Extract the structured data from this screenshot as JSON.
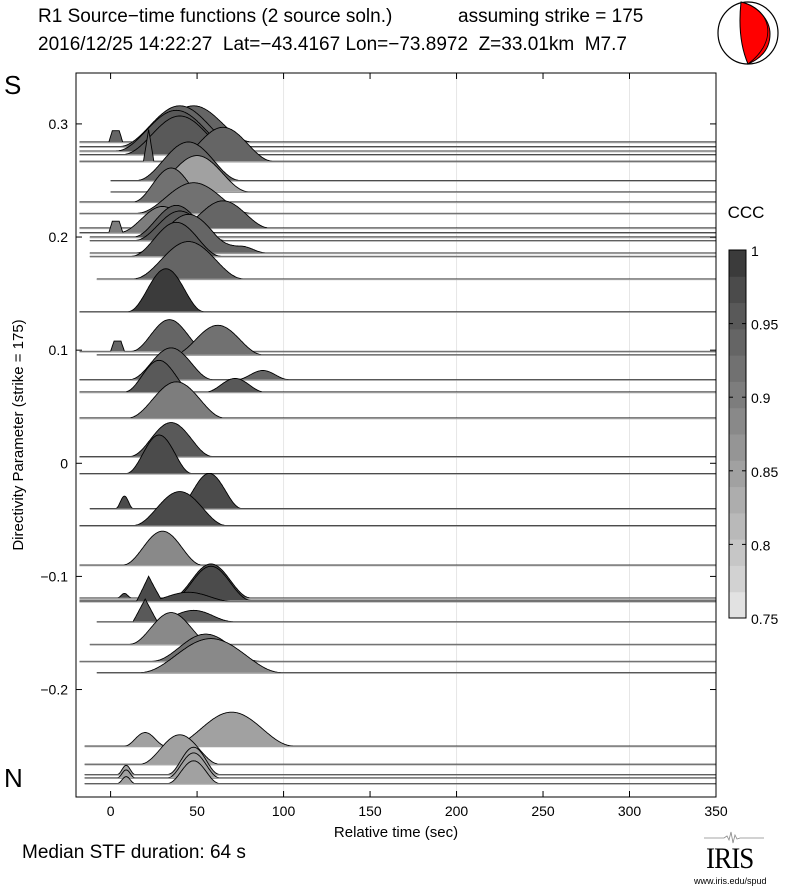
{
  "header": {
    "title_line1": "R1 Source−time functions (2 source soln.)",
    "strike_note": "assuming strike = 175",
    "title_line2": "2016/12/25 14:22:27  Lat=−43.4167 Lon=−73.8972  Z=33.01km  M7.7",
    "beachball_icon": "focal-mechanism-beachball",
    "beachball_color": "#ff0000"
  },
  "footer": {
    "median_label": "Median STF duration: 64 s",
    "logo_text": "IRIS",
    "logo_url": "www.iris.edu/spud"
  },
  "chart_data": {
    "type": "area",
    "title": "R1 Source−time functions (2 source soln.)",
    "xlabel": "Relative time (sec)",
    "ylabel": "Directivity Parameter (strike = 175)",
    "xlim": [
      -20,
      350
    ],
    "ylim": [
      -0.295,
      0.345
    ],
    "xticks": [
      0,
      50,
      100,
      150,
      200,
      250,
      300,
      350
    ],
    "xtick_labels": [
      "0",
      "50",
      "100",
      "150",
      "200",
      "250",
      "300",
      "350"
    ],
    "yticks": [
      0.3,
      0.2,
      0.1,
      0,
      -0.1,
      -0.2
    ],
    "ytick_labels": [
      "0.3",
      "0.2",
      "0.1",
      "0",
      "−0.1",
      "−0.2"
    ],
    "vertical_gridlines": [
      100,
      200,
      300
    ],
    "side_labels": {
      "top": "S",
      "bottom": "N"
    },
    "colorbar": {
      "title": "CCC",
      "range": [
        0.75,
        1.0
      ],
      "ticks": [
        1,
        0.95,
        0.9,
        0.85,
        0.8,
        0.75
      ],
      "tick_labels": [
        "1",
        "0.95",
        "0.9",
        "0.85",
        "0.8",
        "0.75"
      ],
      "levels": 14,
      "colors_low_to_high": [
        "#e2e2e2",
        "#d2d2d2",
        "#c6c6c6",
        "#b9b9b9",
        "#adadad",
        "#a1a1a1",
        "#959595",
        "#898989",
        "#7d7d7d",
        "#717171",
        "#656565",
        "#595959",
        "#4b4b4b",
        "#3b3b3b"
      ]
    },
    "amplitude_scale_note": "STF peak height in directivity-parameter units",
    "traces": [
      {
        "d": 0.284,
        "start": -18,
        "ccc": 0.93,
        "pulses": [
          [
            3,
            8,
            0.01,
            "trap"
          ],
          [
            48,
            68,
            0.032
          ]
        ],
        "end": 120
      },
      {
        "d": 0.28,
        "start": -18,
        "ccc": 0.94,
        "pulses": [
          [
            40,
            70,
            0.036
          ]
        ],
        "end": 120
      },
      {
        "d": 0.276,
        "start": -18,
        "ccc": 0.95,
        "pulses": [
          [
            38,
            70,
            0.036
          ]
        ],
        "end": 120
      },
      {
        "d": 0.273,
        "start": -18,
        "ccc": 0.95,
        "pulses": [
          [
            40,
            66,
            0.034
          ]
        ],
        "end": 120
      },
      {
        "d": 0.267,
        "start": -18,
        "ccc": 0.94,
        "pulses": [
          [
            22,
            6,
            0.028,
            "tri"
          ],
          [
            65,
            58,
            0.03
          ]
        ],
        "end": 128
      },
      {
        "d": 0.25,
        "start": 0,
        "ccc": 0.93,
        "pulses": [
          [
            45,
            60,
            0.034
          ]
        ],
        "end": 120
      },
      {
        "d": 0.24,
        "start": 0,
        "ccc": 0.85,
        "pulses": [
          [
            50,
            60,
            0.032
          ]
        ],
        "end": 120
      },
      {
        "d": 0.231,
        "start": -18,
        "ccc": 0.92,
        "pulses": [
          [
            35,
            44,
            0.03
          ]
        ],
        "end": 90
      },
      {
        "d": 0.221,
        "start": -18,
        "ccc": 0.92,
        "pulses": [
          [
            48,
            66,
            0.027
          ]
        ],
        "end": 125
      },
      {
        "d": 0.208,
        "start": -18,
        "ccc": 0.93,
        "pulses": [
          [
            65,
            54,
            0.024
          ]
        ],
        "end": 120
      },
      {
        "d": 0.204,
        "start": -18,
        "ccc": 0.91,
        "pulses": [
          [
            3,
            8,
            0.01,
            "trap"
          ],
          [
            30,
            50,
            0.023
          ]
        ],
        "end": 120
      },
      {
        "d": 0.2,
        "start": -12,
        "ccc": 0.96,
        "pulses": [
          [
            38,
            50,
            0.028
          ]
        ],
        "end": 110
      },
      {
        "d": 0.197,
        "start": -12,
        "ccc": 0.95,
        "pulses": [
          [
            40,
            52,
            0.026
          ]
        ],
        "end": 110
      },
      {
        "d": 0.186,
        "start": -12,
        "ccc": 0.93,
        "pulses": [
          [
            45,
            60,
            0.034
          ],
          [
            75,
            30,
            0.006
          ]
        ],
        "end": 115
      },
      {
        "d": 0.183,
        "start": -12,
        "ccc": 0.95,
        "pulses": [
          [
            38,
            52,
            0.03
          ]
        ],
        "end": 115
      },
      {
        "d": 0.163,
        "start": -8,
        "ccc": 0.93,
        "pulses": [
          [
            45,
            64,
            0.033
          ]
        ],
        "end": 120
      },
      {
        "d": 0.134,
        "start": -18,
        "ccc": 0.99,
        "pulses": [
          [
            32,
            44,
            0.038
          ]
        ],
        "end": 110
      },
      {
        "d": 0.099,
        "start": -18,
        "ccc": 0.93,
        "pulses": [
          [
            4,
            8,
            0.009,
            "trap"
          ],
          [
            34,
            44,
            0.028
          ]
        ],
        "end": 110
      },
      {
        "d": 0.096,
        "start": -8,
        "ccc": 0.92,
        "pulses": [
          [
            62,
            52,
            0.026
          ]
        ],
        "end": 108
      },
      {
        "d": 0.074,
        "start": -18,
        "ccc": 0.93,
        "pulses": [
          [
            35,
            48,
            0.028
          ],
          [
            88,
            30,
            0.008
          ]
        ],
        "end": 125
      },
      {
        "d": 0.063,
        "start": -18,
        "ccc": 0.95,
        "pulses": [
          [
            28,
            40,
            0.028
          ],
          [
            72,
            34,
            0.012
          ]
        ],
        "end": 110
      },
      {
        "d": 0.04,
        "start": -18,
        "ccc": 0.91,
        "pulses": [
          [
            38,
            56,
            0.032
          ]
        ],
        "end": 115
      },
      {
        "d": 0.006,
        "start": -18,
        "ccc": 0.95,
        "pulses": [
          [
            35,
            48,
            0.03
          ]
        ],
        "end": 100
      },
      {
        "d": -0.009,
        "start": -18,
        "ccc": 0.98,
        "pulses": [
          [
            28,
            38,
            0.034
          ]
        ],
        "end": 100
      },
      {
        "d": -0.04,
        "start": -12,
        "ccc": 0.98,
        "pulses": [
          [
            8,
            10,
            0.011
          ],
          [
            57,
            38,
            0.031
          ]
        ],
        "end": 110
      },
      {
        "d": -0.055,
        "start": -18,
        "ccc": 0.97,
        "pulses": [
          [
            40,
            54,
            0.03
          ]
        ],
        "end": 110
      },
      {
        "d": -0.09,
        "start": -18,
        "ccc": 0.89,
        "pulses": [
          [
            30,
            46,
            0.03
          ]
        ],
        "end": 100
      },
      {
        "d": -0.119,
        "start": -18,
        "ccc": 0.98,
        "pulses": [
          [
            8,
            8,
            0.004
          ],
          [
            58,
            46,
            0.03
          ]
        ],
        "end": 110
      },
      {
        "d": -0.121,
        "start": -18,
        "ccc": 0.98,
        "pulses": [
          [
            58,
            46,
            0.03
          ]
        ],
        "end": 110
      },
      {
        "d": -0.122,
        "start": -18,
        "ccc": 0.97,
        "pulses": [
          [
            22,
            14,
            0.022,
            "tri"
          ],
          [
            45,
            50,
            0.008
          ]
        ],
        "end": 100
      },
      {
        "d": -0.14,
        "start": -8,
        "ccc": 0.96,
        "pulses": [
          [
            20,
            14,
            0.02,
            "tri"
          ],
          [
            48,
            46,
            0.01
          ]
        ],
        "end": 100
      },
      {
        "d": -0.16,
        "start": -12,
        "ccc": 0.89,
        "pulses": [
          [
            35,
            48,
            0.028
          ]
        ],
        "end": 110
      },
      {
        "d": -0.175,
        "start": -18,
        "ccc": 0.92,
        "pulses": [
          [
            55,
            62,
            0.024
          ]
        ],
        "end": 120
      },
      {
        "d": -0.185,
        "start": -8,
        "ccc": 0.88,
        "pulses": [
          [
            58,
            82,
            0.03
          ]
        ],
        "end": 130
      },
      {
        "d": -0.25,
        "start": -15,
        "ccc": 0.84,
        "pulses": [
          [
            20,
            24,
            0.012
          ],
          [
            70,
            72,
            0.03
          ]
        ],
        "end": 140
      },
      {
        "d": -0.266,
        "start": -15,
        "ccc": 0.84,
        "pulses": [
          [
            40,
            46,
            0.026
          ]
        ],
        "end": 120
      },
      {
        "d": -0.275,
        "start": -15,
        "ccc": 0.84,
        "pulses": [
          [
            9,
            10,
            0.008
          ],
          [
            48,
            30,
            0.024
          ]
        ],
        "end": 110
      },
      {
        "d": -0.278,
        "start": -15,
        "ccc": 0.84,
        "pulses": [
          [
            9,
            10,
            0.007
          ],
          [
            48,
            30,
            0.022
          ]
        ],
        "end": 110
      },
      {
        "d": -0.283,
        "start": -15,
        "ccc": 0.84,
        "pulses": [
          [
            9,
            10,
            0.006
          ],
          [
            48,
            30,
            0.02
          ]
        ],
        "end": 110
      }
    ]
  }
}
